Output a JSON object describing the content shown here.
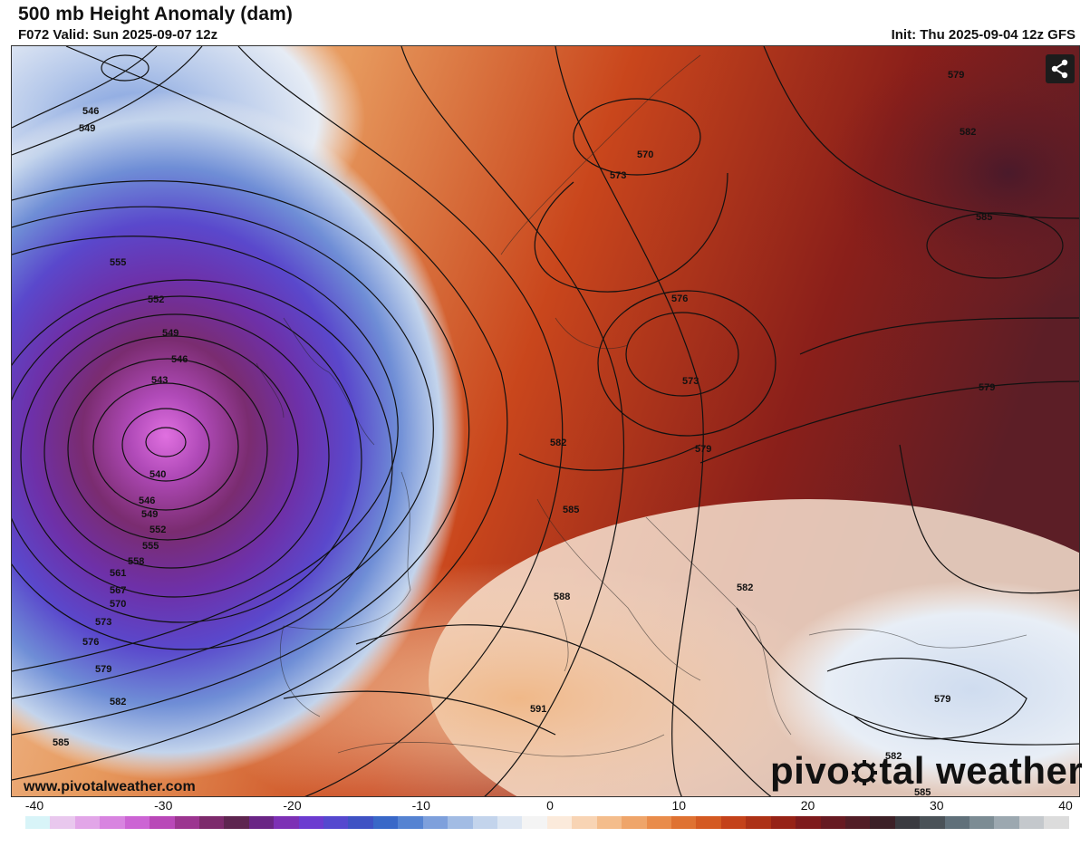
{
  "header": {
    "title": "500 mb Height Anomaly (dam)",
    "valid": "F072 Valid: Sun 2025-09-07 12z",
    "init": "Init: Thu 2025-09-04 12z GFS"
  },
  "map": {
    "contour_labels": [
      "546",
      "549",
      "555",
      "552",
      "549",
      "546",
      "543",
      "540",
      "546",
      "549",
      "552",
      "555",
      "558",
      "561",
      "567",
      "570",
      "573",
      "576",
      "579",
      "582",
      "585",
      "570",
      "573",
      "579",
      "582",
      "585",
      "576",
      "573",
      "579",
      "582",
      "585",
      "579",
      "588",
      "591",
      "582",
      "579",
      "582",
      "585"
    ]
  },
  "share_button": {
    "icon": "share-icon"
  },
  "footer": {
    "website": "www.pivotalweather.com",
    "brand_left": "pivo",
    "brand_right": "tal weather"
  },
  "colorbar": {
    "ticks": [
      "-40",
      "-30",
      "-20",
      "-10",
      "0",
      "10",
      "20",
      "30",
      "40"
    ],
    "min": -40,
    "max": 40,
    "colors": [
      "#d8f4f8",
      "#e9c8ee",
      "#e2a6e8",
      "#d884e0",
      "#cc64d4",
      "#b948b8",
      "#9c3590",
      "#7d2a6c",
      "#5e2550",
      "#6a2585",
      "#7d30b5",
      "#6c3bd0",
      "#5548cf",
      "#3f52c4",
      "#3968c8",
      "#5583d2",
      "#7ea0dc",
      "#a2bce4",
      "#c3d4ec",
      "#dde6f2",
      "#f4f4f4",
      "#fbeadb",
      "#f8d4b4",
      "#f4bd8c",
      "#efa56a",
      "#e98c4b",
      "#df7232",
      "#d45a22",
      "#c4421a",
      "#ad3116",
      "#962216",
      "#7e1a1c",
      "#671a22",
      "#521d26",
      "#3c2027",
      "#3a3a40",
      "#4a5258",
      "#60707a",
      "#7c8c94",
      "#9ca8b0",
      "#c4c8cc",
      "#dcdcdc"
    ]
  }
}
